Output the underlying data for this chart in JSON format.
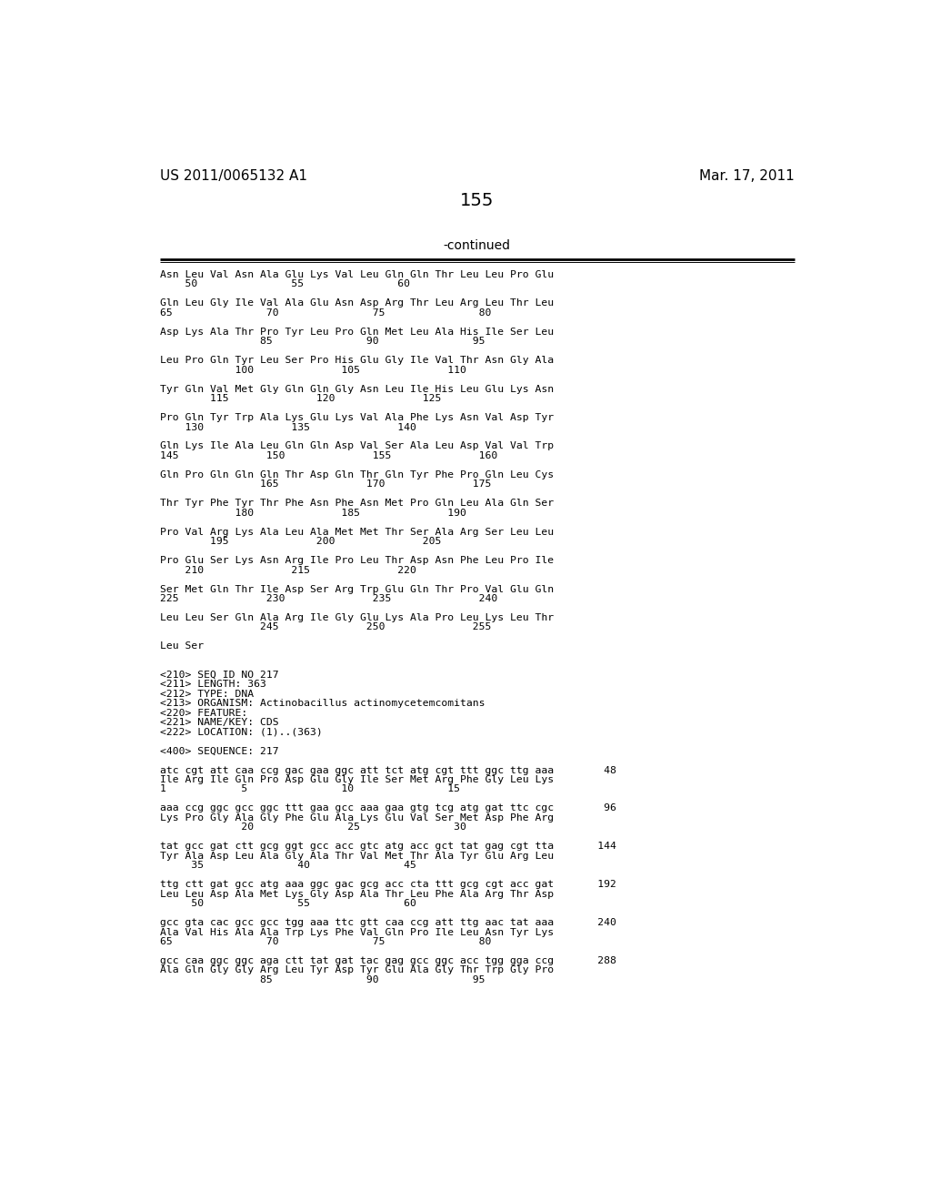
{
  "header_left": "US 2011/0065132 A1",
  "header_right": "Mar. 17, 2011",
  "page_number": "155",
  "continued_label": "-continued",
  "background_color": "#ffffff",
  "text_color": "#000000",
  "body_lines": [
    "Asn Leu Val Asn Ala Glu Lys Val Leu Gln Gln Thr Leu Leu Pro Glu",
    "    50               55               60",
    "",
    "Gln Leu Gly Ile Val Ala Glu Asn Asp Arg Thr Leu Arg Leu Thr Leu",
    "65               70               75               80",
    "",
    "Asp Lys Ala Thr Pro Tyr Leu Pro Gln Met Leu Ala His Ile Ser Leu",
    "                85               90               95",
    "",
    "Leu Pro Gln Tyr Leu Ser Pro His Glu Gly Ile Val Thr Asn Gly Ala",
    "            100              105              110",
    "",
    "Tyr Gln Val Met Gly Gln Gln Gly Asn Leu Ile His Leu Glu Lys Asn",
    "        115              120              125",
    "",
    "Pro Gln Tyr Trp Ala Lys Glu Lys Val Ala Phe Lys Asn Val Asp Tyr",
    "    130              135              140",
    "",
    "Gln Lys Ile Ala Leu Gln Gln Asp Val Ser Ala Leu Asp Val Val Trp",
    "145              150              155              160",
    "",
    "Gln Pro Gln Gln Gln Thr Asp Gln Thr Gln Tyr Phe Pro Gln Leu Cys",
    "                165              170              175",
    "",
    "Thr Tyr Phe Tyr Thr Phe Asn Phe Asn Met Pro Gln Leu Ala Gln Ser",
    "            180              185              190",
    "",
    "Pro Val Arg Lys Ala Leu Ala Met Met Thr Ser Ala Arg Ser Leu Leu",
    "        195              200              205",
    "",
    "Pro Glu Ser Lys Asn Arg Ile Pro Leu Thr Asp Asn Phe Leu Pro Ile",
    "    210              215              220",
    "",
    "Ser Met Gln Thr Ile Asp Ser Arg Trp Glu Gln Thr Pro Val Glu Gln",
    "225              230              235              240",
    "",
    "Leu Leu Ser Gln Ala Arg Ile Gly Glu Lys Ala Pro Leu Lys Leu Thr",
    "                245              250              255",
    "",
    "Leu Ser",
    "",
    "",
    "<210> SEQ ID NO 217",
    "<211> LENGTH: 363",
    "<212> TYPE: DNA",
    "<213> ORGANISM: Actinobacillus actinomycetemcomitans",
    "<220> FEATURE:",
    "<221> NAME/KEY: CDS",
    "<222> LOCATION: (1)..(363)",
    "",
    "<400> SEQUENCE: 217",
    "",
    "atc cgt att caa ccg gac gaa ggc att tct atg cgt ttt ggc ttg aaa        48",
    "Ile Arg Ile Gln Pro Asp Glu Gly Ile Ser Met Arg Phe Gly Leu Lys",
    "1            5               10               15",
    "",
    "aaa ccg ggc gcc ggc ttt gaa gcc aaa gaa gtg tcg atg gat ttc cgc        96",
    "Lys Pro Gly Ala Gly Phe Glu Ala Lys Glu Val Ser Met Asp Phe Arg",
    "             20               25               30",
    "",
    "tat gcc gat ctt gcg ggt gcc acc gtc atg acc gct tat gag cgt tta       144",
    "Tyr Ala Asp Leu Ala Gly Ala Thr Val Met Thr Ala Tyr Glu Arg Leu",
    "     35               40               45",
    "",
    "ttg ctt gat gcc atg aaa ggc gac gcg acc cta ttt gcg cgt acc gat       192",
    "Leu Leu Asp Ala Met Lys Gly Asp Ala Thr Leu Phe Ala Arg Thr Asp",
    "     50               55               60",
    "",
    "gcc gta cac gcc gcc tgg aaa ttc gtt caa ccg att ttg aac tat aaa       240",
    "Ala Val His Ala Ala Trp Lys Phe Val Gln Pro Ile Leu Asn Tyr Lys",
    "65               70               75               80",
    "",
    "gcc caa ggc ggc aga ctt tat gat tac gag gcc ggc acc tgg gga ccg       288",
    "Ala Gln Gly Gly Arg Leu Tyr Asp Tyr Glu Ala Gly Thr Trp Gly Pro",
    "                85               90               95"
  ]
}
